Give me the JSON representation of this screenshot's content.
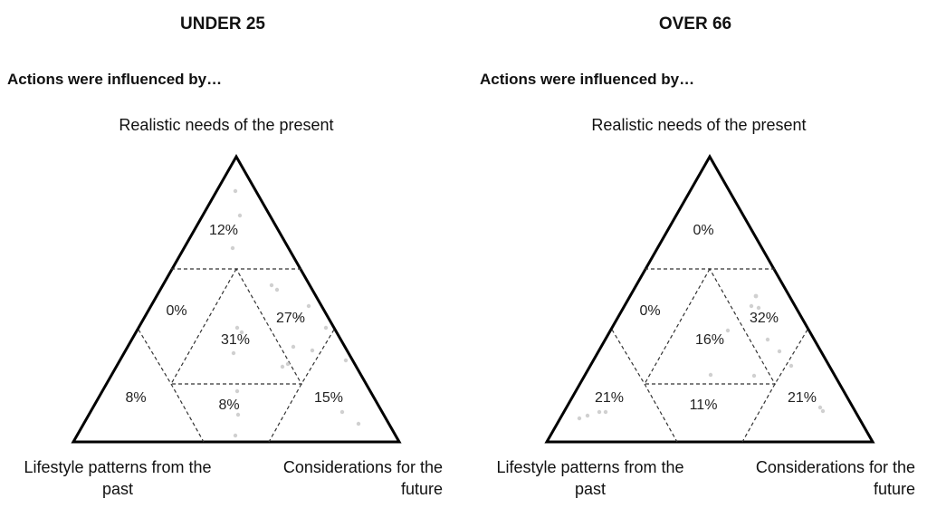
{
  "panels": [
    {
      "title": "UNDER 25",
      "subtitle": "Actions were influenced by…",
      "top_vertex_label": "Realistic needs of the present",
      "bottom_left_label": "Lifestyle patterns from the past",
      "bottom_right_label": "Considerations for the future",
      "regions": {
        "top": "12%",
        "upper_left": "0%",
        "center": "31%",
        "upper_right": "27%",
        "lower_left": "8%",
        "bottom_center": "8%",
        "lower_right": "15%"
      }
    },
    {
      "title": "OVER 66",
      "subtitle": "Actions were influenced by…",
      "top_vertex_label": "Realistic needs of the present",
      "bottom_left_label": "Lifestyle patterns from the past",
      "bottom_right_label": "Considerations for the future",
      "regions": {
        "top": "0%",
        "upper_left": "0%",
        "center": "16%",
        "upper_right": "32%",
        "lower_left": "21%",
        "bottom_center": "11%",
        "lower_right": "21%"
      }
    }
  ]
}
